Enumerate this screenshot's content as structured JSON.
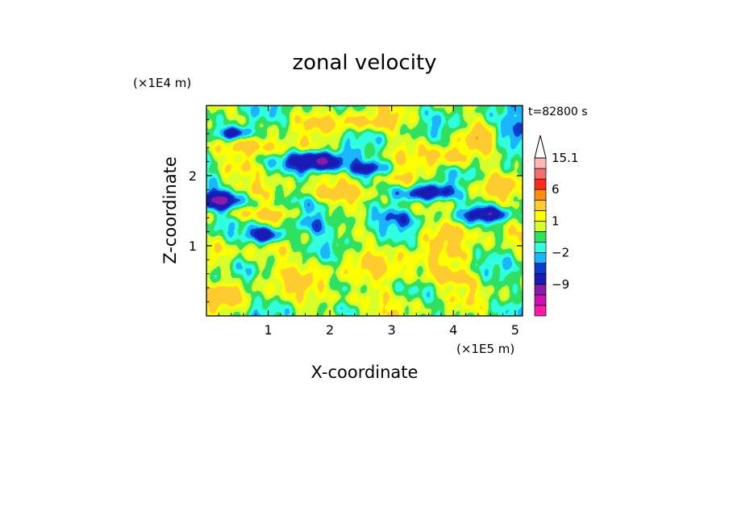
{
  "chart_data": {
    "type": "heatmap",
    "title": "zonal velocity",
    "xlabel": "X-coordinate",
    "ylabel": "Z-coordinate",
    "x_scale_label": "(×1E5 m)",
    "y_scale_label": "(×1E4 m)",
    "time_label": "t=82800 s",
    "xlim": [
      0,
      5.12
    ],
    "ylim": [
      0,
      3.0
    ],
    "x_ticks": [
      1,
      2,
      3,
      4,
      5
    ],
    "x_tick_labels": [
      "1",
      "2",
      "3",
      "4",
      "5"
    ],
    "y_ticks": [
      1,
      2
    ],
    "y_tick_labels": [
      "1",
      "2"
    ],
    "colorbar": {
      "levels": [
        -15,
        -12,
        -9,
        -6,
        -3,
        -2,
        -1,
        0,
        1,
        2,
        3,
        6,
        9,
        12,
        15.1
      ],
      "colors": [
        "#ff1aa8",
        "#cc10b4",
        "#8a1aa8",
        "#1a1ab4",
        "#0a3ccc",
        "#1ab4ff",
        "#30ffe0",
        "#30e060",
        "#d8ff2a",
        "#ffff00",
        "#ffcc30",
        "#ff8c10",
        "#ff2a1a",
        "#f07070",
        "#ffb8b8"
      ],
      "labels": [
        {
          "value": 15.1,
          "text": "15.1"
        },
        {
          "value": 6,
          "text": "6"
        },
        {
          "value": 1,
          "text": "1"
        },
        {
          "value": -2,
          "text": "−2"
        },
        {
          "value": -9,
          "text": "−9"
        }
      ],
      "extend_max": true
    },
    "features": [
      {
        "x": 0.45,
        "z": 2.6,
        "sx": 0.25,
        "sz": 0.1,
        "a": -7
      },
      {
        "x": 1.85,
        "z": 2.2,
        "sx": 0.45,
        "sz": 0.15,
        "a": -8
      },
      {
        "x": 2.6,
        "z": 2.1,
        "sx": 0.3,
        "sz": 0.1,
        "a": -5
      },
      {
        "x": 3.6,
        "z": 1.75,
        "sx": 0.4,
        "sz": 0.12,
        "a": -7
      },
      {
        "x": 0.2,
        "z": 1.65,
        "sx": 0.35,
        "sz": 0.12,
        "a": -8
      },
      {
        "x": 0.95,
        "z": 1.15,
        "sx": 0.3,
        "sz": 0.12,
        "a": -7
      },
      {
        "x": 4.55,
        "z": 1.45,
        "sx": 0.35,
        "sz": 0.1,
        "a": -5
      },
      {
        "x": 4.9,
        "z": 2.6,
        "sx": 0.25,
        "sz": 0.2,
        "a": -4
      },
      {
        "x": 3.0,
        "z": 1.4,
        "sx": 0.6,
        "sz": 0.15,
        "a": -3
      },
      {
        "x": 1.8,
        "z": 1.3,
        "sx": 0.5,
        "sz": 0.15,
        "a": -2.5
      },
      {
        "x": 1.2,
        "z": 2.4,
        "sx": 0.8,
        "sz": 0.12,
        "a": 3
      },
      {
        "x": 2.5,
        "z": 2.75,
        "sx": 0.7,
        "sz": 0.12,
        "a": 3
      },
      {
        "x": 2.2,
        "z": 1.75,
        "sx": 0.6,
        "sz": 0.12,
        "a": 4
      },
      {
        "x": 3.1,
        "z": 1.95,
        "sx": 0.4,
        "sz": 0.12,
        "a": 3
      },
      {
        "x": 3.95,
        "z": 2.25,
        "sx": 0.4,
        "sz": 0.15,
        "a": 3.5
      },
      {
        "x": 4.4,
        "z": 2.55,
        "sx": 0.3,
        "sz": 0.15,
        "a": 3
      },
      {
        "x": 0.4,
        "z": 2.1,
        "sx": 0.35,
        "sz": 0.12,
        "a": 3
      },
      {
        "x": 0.6,
        "z": 1.45,
        "sx": 0.4,
        "sz": 0.1,
        "a": 3
      },
      {
        "x": 1.2,
        "z": 1.45,
        "sx": 0.3,
        "sz": 0.1,
        "a": 3
      },
      {
        "x": 4.0,
        "z": 1.2,
        "sx": 0.5,
        "sz": 0.15,
        "a": 3
      },
      {
        "x": 4.7,
        "z": 1.85,
        "sx": 0.3,
        "sz": 0.12,
        "a": 3
      },
      {
        "x": 3.85,
        "z": 0.55,
        "sx": 0.5,
        "sz": 0.12,
        "a": 3.5
      },
      {
        "x": 0.3,
        "z": 0.3,
        "sx": 0.3,
        "sz": 0.15,
        "a": 3
      },
      {
        "x": 2.3,
        "z": 0.25,
        "sx": 0.6,
        "sz": 0.12,
        "a": 2.5
      },
      {
        "x": 1.5,
        "z": 0.6,
        "sx": 0.8,
        "sz": 0.25,
        "a": 1.5
      },
      {
        "x": 3.2,
        "z": 0.8,
        "sx": 0.8,
        "sz": 0.3,
        "a": 1.5
      },
      {
        "x": 0.7,
        "z": 0.9,
        "sx": 0.5,
        "sz": 0.15,
        "a": 1.4
      }
    ]
  }
}
